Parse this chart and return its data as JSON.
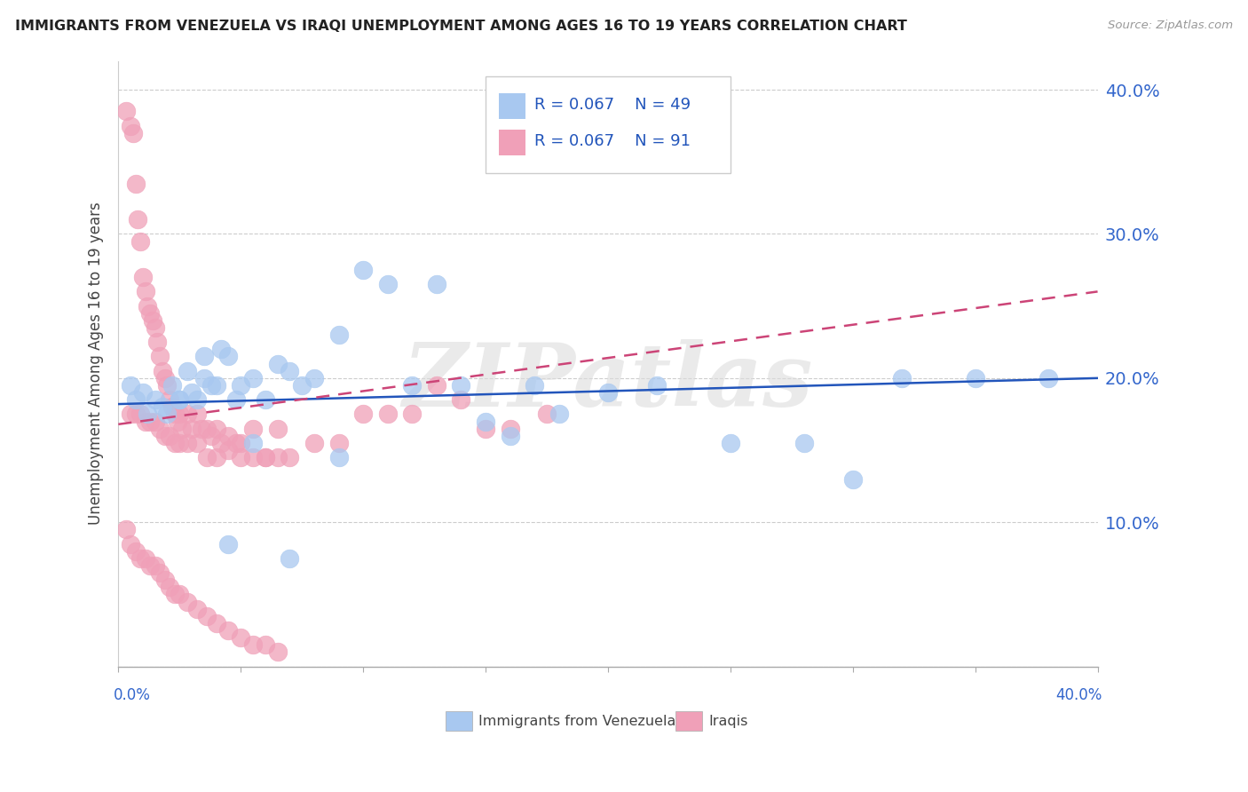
{
  "title": "IMMIGRANTS FROM VENEZUELA VS IRAQI UNEMPLOYMENT AMONG AGES 16 TO 19 YEARS CORRELATION CHART",
  "source": "Source: ZipAtlas.com",
  "ylabel": "Unemployment Among Ages 16 to 19 years",
  "xlim": [
    0.0,
    0.4
  ],
  "ylim": [
    0.0,
    0.42
  ],
  "yticks": [
    0.0,
    0.1,
    0.2,
    0.3,
    0.4
  ],
  "ytick_labels": [
    "",
    "10.0%",
    "20.0%",
    "30.0%",
    "40.0%"
  ],
  "color_blue": "#A8C8F0",
  "color_pink": "#F0A0B8",
  "line_blue": "#2255BB",
  "line_pink": "#CC4477",
  "watermark": "ZIPatlas",
  "blue_line_start": 0.182,
  "blue_line_end": 0.2,
  "pink_line_start": 0.168,
  "pink_line_end": 0.26,
  "blue_x": [
    0.005,
    0.007,
    0.01,
    0.012,
    0.015,
    0.018,
    0.02,
    0.022,
    0.025,
    0.028,
    0.03,
    0.032,
    0.035,
    0.038,
    0.04,
    0.042,
    0.045,
    0.048,
    0.05,
    0.055,
    0.06,
    0.065,
    0.07,
    0.075,
    0.08,
    0.09,
    0.1,
    0.11,
    0.12,
    0.13,
    0.14,
    0.15,
    0.16,
    0.17,
    0.18,
    0.2,
    0.22,
    0.25,
    0.28,
    0.3,
    0.32,
    0.35,
    0.38,
    0.025,
    0.035,
    0.045,
    0.055,
    0.07,
    0.09
  ],
  "blue_y": [
    0.195,
    0.185,
    0.19,
    0.175,
    0.185,
    0.18,
    0.175,
    0.195,
    0.185,
    0.205,
    0.19,
    0.185,
    0.2,
    0.195,
    0.195,
    0.22,
    0.215,
    0.185,
    0.195,
    0.2,
    0.185,
    0.21,
    0.205,
    0.195,
    0.2,
    0.23,
    0.275,
    0.265,
    0.195,
    0.265,
    0.195,
    0.17,
    0.16,
    0.195,
    0.175,
    0.19,
    0.195,
    0.155,
    0.155,
    0.13,
    0.2,
    0.2,
    0.2,
    0.185,
    0.215,
    0.085,
    0.155,
    0.075,
    0.145
  ],
  "pink_x": [
    0.003,
    0.005,
    0.006,
    0.007,
    0.008,
    0.009,
    0.01,
    0.011,
    0.012,
    0.013,
    0.014,
    0.015,
    0.016,
    0.017,
    0.018,
    0.019,
    0.02,
    0.021,
    0.022,
    0.023,
    0.024,
    0.025,
    0.026,
    0.028,
    0.03,
    0.032,
    0.034,
    0.036,
    0.038,
    0.04,
    0.042,
    0.045,
    0.048,
    0.05,
    0.055,
    0.06,
    0.065,
    0.07,
    0.08,
    0.09,
    0.1,
    0.11,
    0.12,
    0.13,
    0.14,
    0.15,
    0.16,
    0.175,
    0.005,
    0.007,
    0.009,
    0.011,
    0.013,
    0.015,
    0.017,
    0.019,
    0.021,
    0.023,
    0.025,
    0.028,
    0.032,
    0.036,
    0.04,
    0.045,
    0.05,
    0.055,
    0.06,
    0.065,
    0.003,
    0.005,
    0.007,
    0.009,
    0.011,
    0.013,
    0.015,
    0.017,
    0.019,
    0.021,
    0.023,
    0.025,
    0.028,
    0.032,
    0.036,
    0.04,
    0.045,
    0.05,
    0.055,
    0.06,
    0.065
  ],
  "pink_y": [
    0.385,
    0.375,
    0.37,
    0.335,
    0.31,
    0.295,
    0.27,
    0.26,
    0.25,
    0.245,
    0.24,
    0.235,
    0.225,
    0.215,
    0.205,
    0.2,
    0.195,
    0.185,
    0.18,
    0.175,
    0.17,
    0.175,
    0.165,
    0.175,
    0.165,
    0.175,
    0.165,
    0.165,
    0.16,
    0.165,
    0.155,
    0.16,
    0.155,
    0.155,
    0.165,
    0.145,
    0.165,
    0.145,
    0.155,
    0.155,
    0.175,
    0.175,
    0.175,
    0.195,
    0.185,
    0.165,
    0.165,
    0.175,
    0.175,
    0.175,
    0.175,
    0.17,
    0.17,
    0.17,
    0.165,
    0.16,
    0.16,
    0.155,
    0.155,
    0.155,
    0.155,
    0.145,
    0.145,
    0.15,
    0.145,
    0.145,
    0.145,
    0.145,
    0.095,
    0.085,
    0.08,
    0.075,
    0.075,
    0.07,
    0.07,
    0.065,
    0.06,
    0.055,
    0.05,
    0.05,
    0.045,
    0.04,
    0.035,
    0.03,
    0.025,
    0.02,
    0.015,
    0.015,
    0.01
  ]
}
